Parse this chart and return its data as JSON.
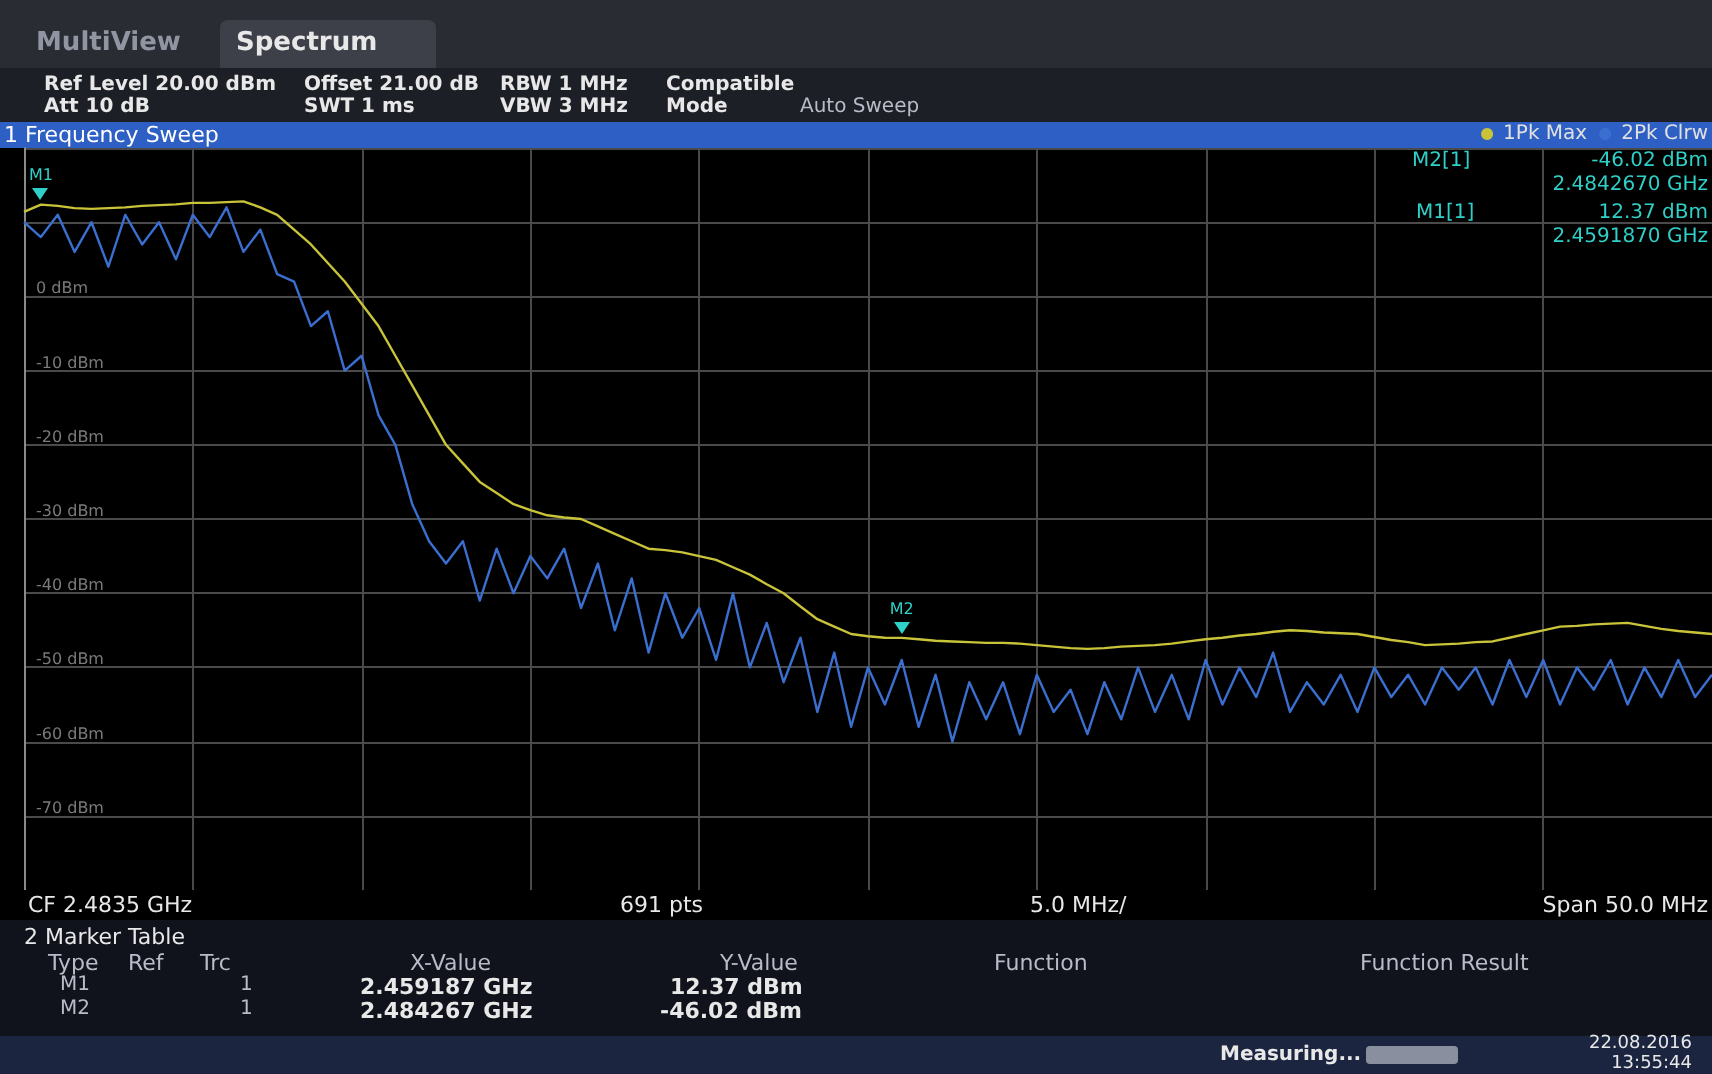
{
  "chart_data": {
    "type": "line",
    "title": "1 Frequency Sweep",
    "categories": [
      null,
      null,
      null,
      null,
      null,
      null,
      null,
      null,
      null,
      null,
      null,
      null,
      null,
      null,
      null,
      null,
      null,
      null,
      null,
      null,
      null,
      null,
      null,
      null,
      null,
      null,
      null,
      null,
      null,
      null,
      null,
      null,
      null,
      null,
      null,
      null,
      null,
      null,
      null,
      null,
      null,
      null,
      null,
      null,
      null,
      null,
      null,
      null,
      null,
      null,
      null,
      null,
      null,
      null,
      null,
      null,
      null,
      null,
      null,
      null,
      null,
      null,
      null,
      null,
      null,
      null,
      null,
      null,
      null,
      null,
      null,
      null,
      null,
      null,
      null,
      null,
      null,
      null,
      null,
      null,
      null,
      null,
      null,
      null,
      null,
      null,
      null,
      null,
      null,
      null,
      null,
      null,
      null,
      null,
      null,
      null,
      null,
      null,
      null,
      null,
      null
    ],
    "series": [
      {
        "name": "1Pk Max",
        "color": "#c9c33a",
        "values": [
          11.4,
          12.37,
          12.2,
          11.9,
          11.8,
          11.9,
          12.0,
          12.2,
          12.3,
          12.4,
          12.6,
          12.6,
          12.7,
          12.8,
          12.0,
          11.0,
          9.0,
          7.0,
          4.5,
          2.0,
          -1.0,
          -4.0,
          -8.0,
          -12.0,
          -16.0,
          -20.0,
          -22.5,
          -25.0,
          -26.5,
          -28.0,
          -28.8,
          -29.5,
          -29.8,
          -30.0,
          -31.0,
          -32.0,
          -33.0,
          -34.0,
          -34.2,
          -34.5,
          -35.0,
          -35.5,
          -36.5,
          -37.5,
          -38.8,
          -40.0,
          -41.8,
          -43.5,
          -44.5,
          -45.5,
          -45.8,
          -46.0,
          -46.02,
          -46.2,
          -46.4,
          -46.5,
          -46.6,
          -46.7,
          -46.7,
          -46.8,
          -47.0,
          -47.2,
          -47.4,
          -47.5,
          -47.4,
          -47.2,
          -47.1,
          -47.0,
          -46.8,
          -46.5,
          -46.2,
          -46.0,
          -45.7,
          -45.5,
          -45.2,
          -45.0,
          -45.1,
          -45.3,
          -45.4,
          -45.5,
          -45.9,
          -46.3,
          -46.6,
          -47.0,
          -46.9,
          -46.8,
          -46.6,
          -46.5,
          -46.0,
          -45.5,
          -45.0,
          -44.5,
          -44.4,
          -44.2,
          -44.1,
          -44.0,
          -44.4,
          -44.8,
          -45.1,
          -45.3,
          -45.5
        ]
      },
      {
        "name": "2Pk Clrw",
        "color": "#3a6fd0",
        "values": [
          10,
          8,
          11,
          6,
          10,
          4,
          11,
          7,
          10,
          5,
          11,
          8,
          12,
          6,
          9,
          3,
          2,
          -4,
          -2,
          -10,
          -8,
          -16,
          -20,
          -28,
          -33,
          -36,
          -33,
          -41,
          -34,
          -40,
          -35,
          -38,
          -34,
          -42,
          -36,
          -45,
          -38,
          -48,
          -40,
          -46,
          -42,
          -49,
          -40,
          -50,
          -44,
          -52,
          -46,
          -56,
          -48,
          -58,
          -50,
          -55,
          -49,
          -58,
          -51,
          -60,
          -52,
          -57,
          -52,
          -59,
          -51,
          -56,
          -53,
          -59,
          -52,
          -57,
          -50,
          -56,
          -51,
          -57,
          -49,
          -55,
          -50,
          -54,
          -48,
          -56,
          -52,
          -55,
          -51,
          -56,
          -50,
          -54,
          -51,
          -55,
          -50,
          -53,
          -50,
          -55,
          -49,
          -54,
          -49,
          -55,
          -50,
          -53,
          -49,
          -55,
          -50,
          -54,
          -49,
          -54,
          -51
        ]
      }
    ],
    "ylim": [
      -80,
      20
    ],
    "yticks": [
      {
        "value": -70,
        "label": "-70 dBm"
      },
      {
        "value": -60,
        "label": "-60 dBm"
      },
      {
        "value": -50,
        "label": "-50 dBm"
      },
      {
        "value": -40,
        "label": "-40 dBm"
      },
      {
        "value": -30,
        "label": "-30 dBm"
      },
      {
        "value": -20,
        "label": "-20 dBm"
      },
      {
        "value": -10,
        "label": "-10 dBm"
      },
      {
        "value": 0,
        "label": "0 dBm"
      },
      {
        "value": 10,
        "label": null
      },
      {
        "value": 20,
        "label": null
      }
    ],
    "tick_labels": "y",
    "grid": true,
    "legend": "top right",
    "marker": "none",
    "annotations": [
      "MultiView",
      "Spectrum",
      "Ref Level 20.00 dBm",
      "Att 10 dB",
      "Offset 21.00 dB",
      "SWT 1 ms",
      "RBW 1 MHz",
      "VBW 3 MHz",
      "Compatible",
      "Mode",
      "Auto Sweep",
      "M2[1]",
      "-46.02 dBm",
      "2.4842670 GHz",
      "M1[1]",
      "12.37 dBm",
      "2.4591870 GHz",
      "CF 2.4835 GHz",
      "691 pts",
      "5.0 MHz/",
      "Span 50.0 MHz",
      "2 Marker Table",
      "Type",
      "Ref",
      "Trc",
      "X-Value",
      "Y-Value",
      "Function",
      "Function Result",
      "M1",
      "1",
      "2.459187 GHz",
      "12.37 dBm",
      "M2",
      "1",
      "2.484267 GHz",
      "-46.02 dBm",
      "Measuring...",
      "22.08.2016",
      "13:55:44",
      {
        "text": "M1",
        "y": 12.37
      },
      {
        "text": "M2",
        "y": -46.02
      }
    ]
  }
}
